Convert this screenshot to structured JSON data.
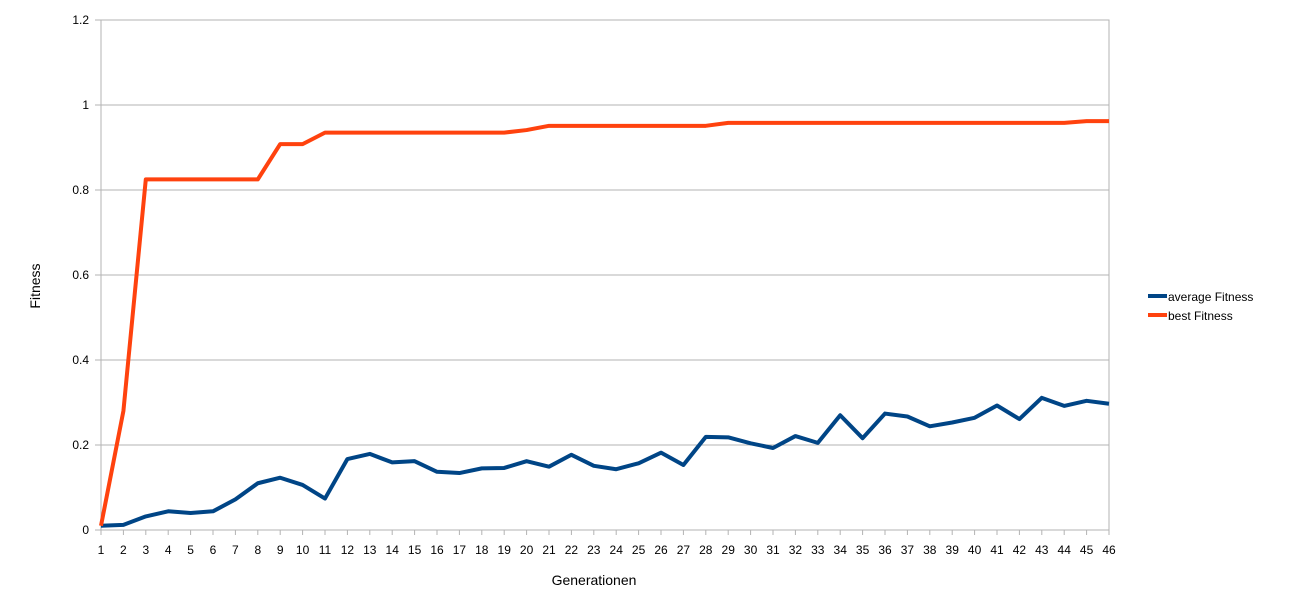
{
  "chart_data": {
    "type": "line",
    "title": "",
    "xlabel": "Generationen",
    "ylabel": "Fitness",
    "categories": [
      "1",
      "2",
      "3",
      "4",
      "5",
      "6",
      "7",
      "8",
      "9",
      "10",
      "11",
      "12",
      "13",
      "14",
      "15",
      "16",
      "17",
      "18",
      "19",
      "20",
      "21",
      "22",
      "23",
      "24",
      "25",
      "26",
      "27",
      "28",
      "29",
      "30",
      "31",
      "32",
      "33",
      "34",
      "35",
      "36",
      "37",
      "38",
      "39",
      "40",
      "41",
      "42",
      "43",
      "44",
      "45",
      "46"
    ],
    "ylim": [
      0,
      1.2
    ],
    "yticks": [
      "0",
      "0.2",
      "0.4",
      "0.6",
      "0.8",
      "1",
      "1.2"
    ],
    "grid": true,
    "legend_position": "right",
    "series": [
      {
        "name": "average Fitness",
        "color": "#004586",
        "values": [
          0.01,
          0.012,
          0.032,
          0.044,
          0.04,
          0.044,
          0.072,
          0.11,
          0.123,
          0.106,
          0.074,
          0.167,
          0.179,
          0.159,
          0.162,
          0.137,
          0.134,
          0.145,
          0.146,
          0.162,
          0.149,
          0.177,
          0.151,
          0.143,
          0.157,
          0.182,
          0.153,
          0.219,
          0.218,
          0.204,
          0.193,
          0.221,
          0.205,
          0.27,
          0.216,
          0.274,
          0.267,
          0.244,
          0.253,
          0.264,
          0.293,
          0.261,
          0.311,
          0.292,
          0.304,
          0.297
        ]
      },
      {
        "name": "best Fitness",
        "color": "#ff420e",
        "values": [
          0.01,
          0.28,
          0.825,
          0.825,
          0.825,
          0.825,
          0.825,
          0.825,
          0.908,
          0.908,
          0.935,
          0.935,
          0.935,
          0.935,
          0.935,
          0.935,
          0.935,
          0.935,
          0.935,
          0.941,
          0.951,
          0.951,
          0.951,
          0.951,
          0.951,
          0.951,
          0.951,
          0.951,
          0.958,
          0.958,
          0.958,
          0.958,
          0.958,
          0.958,
          0.958,
          0.958,
          0.958,
          0.958,
          0.958,
          0.958,
          0.958,
          0.958,
          0.958,
          0.958,
          0.962,
          0.962
        ]
      }
    ]
  }
}
